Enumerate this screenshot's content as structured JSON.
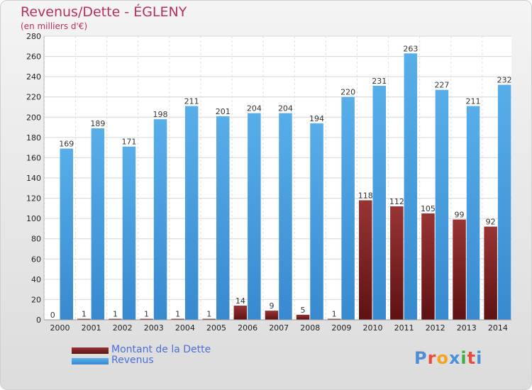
{
  "header": {
    "title": "Revenus/Dette - ÉGLENY",
    "subtitle": "(en milliers d'€)"
  },
  "legend": {
    "debt_label": "Montant de la Dette",
    "revenue_label": "Revenus"
  },
  "logo": {
    "text": "Proxiti",
    "colors": [
      "#4b8fd6",
      "#e84c3d",
      "#f2a522",
      "#4b8fd6",
      "#3fae49",
      "#e84c3d",
      "#4b8fd6"
    ]
  },
  "colors": {
    "revenue": "#4a9fe0",
    "revenue_dark": "#2f7bc2",
    "debt": "#8c2a2a",
    "debt_dark": "#5a1010"
  },
  "chart_data": {
    "type": "bar",
    "title": "Revenus/Dette - ÉGLENY",
    "ylabel": "(en milliers d'€)",
    "ylim": [
      0,
      280
    ],
    "yticks": [
      0,
      20,
      40,
      60,
      80,
      100,
      120,
      140,
      160,
      180,
      200,
      220,
      240,
      260,
      280
    ],
    "grid": true,
    "legend_position": "bottom-left",
    "categories": [
      "2000",
      "2001",
      "2002",
      "2003",
      "2004",
      "2005",
      "2006",
      "2007",
      "2008",
      "2009",
      "2010",
      "2011",
      "2012",
      "2013",
      "2014"
    ],
    "series": [
      {
        "name": "Montant de la Dette",
        "values": [
          0,
          1,
          1,
          1,
          1,
          1,
          14,
          9,
          5,
          1,
          118,
          112,
          105,
          99,
          92
        ]
      },
      {
        "name": "Revenus",
        "values": [
          169,
          189,
          171,
          198,
          211,
          201,
          204,
          204,
          194,
          220,
          231,
          263,
          227,
          211,
          232
        ]
      }
    ]
  }
}
